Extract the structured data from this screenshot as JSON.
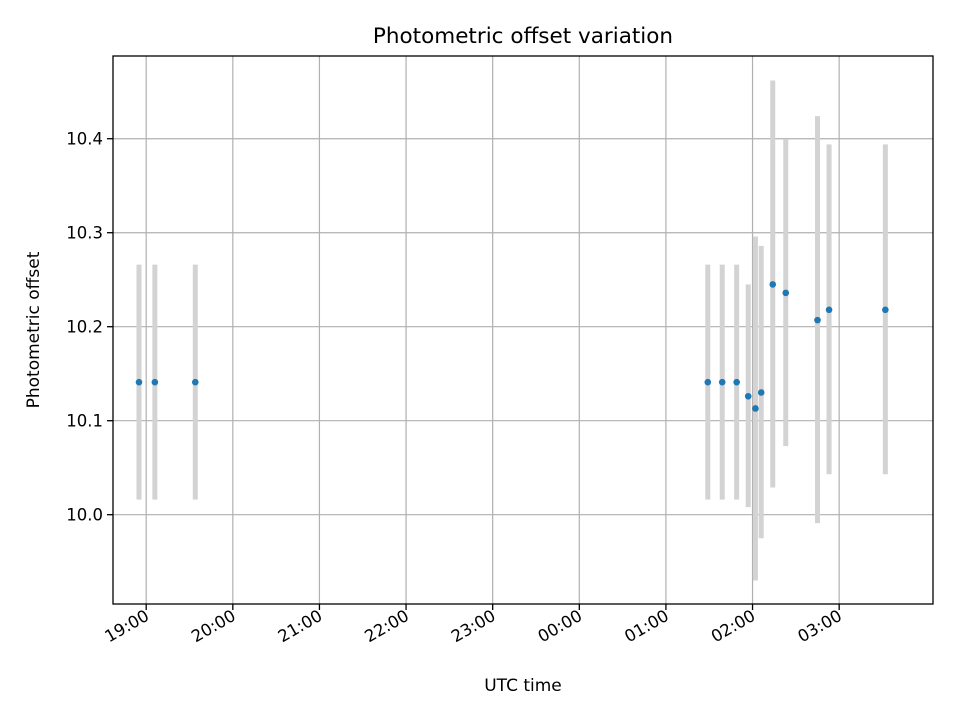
{
  "chart_data": {
    "type": "scatter",
    "title": "Photometric offset variation",
    "xlabel": "UTC time",
    "ylabel": "Photometric offset",
    "x_ticks": [
      "19:00",
      "20:00",
      "21:00",
      "22:00",
      "23:00",
      "00:00",
      "01:00",
      "02:00",
      "03:00"
    ],
    "y_ticks": [
      "10.0",
      "10.1",
      "10.2",
      "10.3",
      "10.4"
    ],
    "xlim": [
      "18:37",
      "04:05"
    ],
    "ylim": [
      9.905,
      10.488
    ],
    "grid": true,
    "series": [
      {
        "marker_color": "#1f77b4",
        "errorbar_color": "#d3d3d3",
        "points": [
          {
            "x": "18:55",
            "y": 10.141,
            "y_low": 10.016,
            "y_high": 10.266
          },
          {
            "x": "19:06",
            "y": 10.141,
            "y_low": 10.016,
            "y_high": 10.266
          },
          {
            "x": "19:34",
            "y": 10.141,
            "y_low": 10.016,
            "y_high": 10.266
          },
          {
            "x": "01:29",
            "y": 10.141,
            "y_low": 10.016,
            "y_high": 10.266
          },
          {
            "x": "01:39",
            "y": 10.141,
            "y_low": 10.016,
            "y_high": 10.266
          },
          {
            "x": "01:49",
            "y": 10.141,
            "y_low": 10.016,
            "y_high": 10.266
          },
          {
            "x": "01:57",
            "y": 10.126,
            "y_low": 10.008,
            "y_high": 10.245
          },
          {
            "x": "02:02",
            "y": 10.113,
            "y_low": 9.93,
            "y_high": 10.296
          },
          {
            "x": "02:06",
            "y": 10.13,
            "y_low": 9.975,
            "y_high": 10.286
          },
          {
            "x": "02:14",
            "y": 10.245,
            "y_low": 10.029,
            "y_high": 10.462
          },
          {
            "x": "02:23",
            "y": 10.236,
            "y_low": 10.073,
            "y_high": 10.399
          },
          {
            "x": "02:45",
            "y": 10.207,
            "y_low": 9.991,
            "y_high": 10.424
          },
          {
            "x": "02:53",
            "y": 10.218,
            "y_low": 10.043,
            "y_high": 10.394
          },
          {
            "x": "03:32",
            "y": 10.218,
            "y_low": 10.043,
            "y_high": 10.394
          }
        ]
      }
    ]
  }
}
